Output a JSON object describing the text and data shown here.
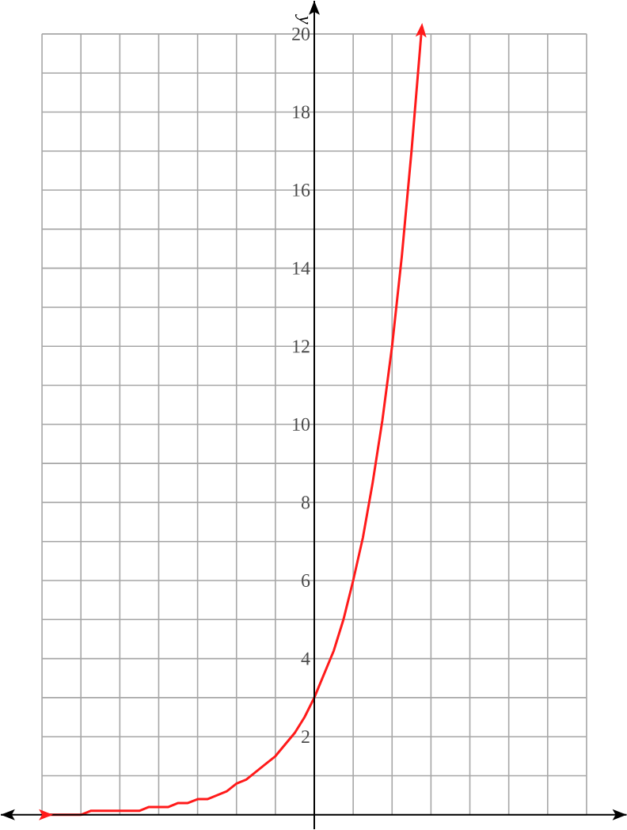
{
  "chart_data": {
    "type": "line",
    "ylabel": "y",
    "categories": [
      null,
      null,
      null,
      null,
      null,
      null,
      null,
      null,
      null,
      null,
      null,
      null,
      null,
      null,
      null,
      null,
      null,
      null,
      null,
      null,
      null,
      null,
      null,
      null,
      null,
      null,
      null,
      null,
      null,
      null,
      null,
      null,
      null,
      null,
      null,
      null,
      null,
      null,
      null,
      null,
      null,
      null,
      null,
      null,
      null,
      null,
      null,
      null,
      null,
      null,
      null,
      null,
      null,
      null,
      null,
      null,
      null
    ],
    "series": [
      {
        "color": "#ff1a1a",
        "values": [
          0.0,
          0.0,
          0.0,
          0.0,
          0.0,
          0.1,
          0.1,
          0.1,
          0.1,
          0.1,
          0.1,
          0.2,
          0.2,
          0.2,
          0.3,
          0.3,
          0.4,
          0.4,
          0.5,
          0.6,
          0.8,
          0.9,
          1.1,
          1.3,
          1.5,
          1.8,
          2.1,
          2.5,
          3,
          3.6,
          4.2,
          5.0,
          6,
          7.1,
          8.5,
          10.1,
          12,
          14.3,
          17.0,
          20,
          null,
          null,
          null,
          null,
          null,
          null,
          null,
          null,
          null,
          null,
          null,
          null,
          null,
          null,
          null,
          null,
          null
        ]
      }
    ],
    "ylim": [
      -0.37,
      20.85
    ],
    "yticks": [
      {
        "value": 0,
        "label": null
      },
      {
        "value": 1,
        "label": null
      },
      2,
      {
        "value": 3,
        "label": null
      },
      4,
      {
        "value": 5,
        "label": null
      },
      6,
      {
        "value": 7,
        "label": null
      },
      8,
      {
        "value": 9,
        "label": null
      },
      10,
      {
        "value": 11,
        "label": null
      },
      12,
      {
        "value": 13,
        "label": null
      },
      14,
      {
        "value": 15,
        "label": null
      },
      16,
      {
        "value": 17,
        "label": null
      },
      18,
      {
        "value": 19,
        "label": null
      },
      20
    ],
    "grid": true,
    "tick_labels": "y",
    "marker": "none",
    "line_style": "solid"
  }
}
